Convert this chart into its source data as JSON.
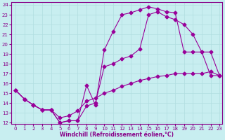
{
  "xlabel": "Windchill (Refroidissement éolien,°C)",
  "bg_color": "#c8eef0",
  "line_color": "#990099",
  "grid_color": "#b0dde0",
  "tick_color": "#880088",
  "label_color": "#880088",
  "xmin": 0,
  "xmax": 23,
  "ymin": 12,
  "ymax": 24,
  "curve1_x": [
    0,
    1,
    2,
    3,
    4,
    5,
    6,
    7,
    8,
    9,
    10,
    11,
    12,
    13,
    14,
    15,
    16,
    17,
    18,
    19,
    20,
    21,
    22,
    23
  ],
  "curve1_y": [
    15.3,
    14.4,
    13.8,
    13.3,
    13.3,
    12.0,
    12.2,
    12.2,
    15.8,
    13.8,
    19.4,
    21.3,
    23.0,
    23.2,
    23.5,
    23.8,
    23.6,
    23.3,
    23.2,
    19.2,
    19.2,
    19.2,
    19.2,
    16.8
  ],
  "curve2_x": [
    0,
    1,
    2,
    3,
    4,
    5,
    6,
    7,
    8,
    9,
    10,
    11,
    12,
    13,
    14,
    15,
    16,
    17,
    18,
    19,
    20,
    21,
    22,
    23
  ],
  "curve2_y": [
    15.3,
    14.4,
    13.8,
    13.3,
    13.3,
    12.0,
    12.2,
    12.2,
    13.7,
    14.0,
    17.7,
    18.0,
    18.5,
    18.8,
    19.5,
    23.0,
    23.3,
    22.8,
    22.5,
    22.0,
    21.0,
    19.2,
    16.8,
    16.8
  ],
  "curve3_x": [
    0,
    1,
    2,
    3,
    4,
    5,
    6,
    7,
    8,
    9,
    10,
    11,
    12,
    13,
    14,
    15,
    16,
    17,
    18,
    19,
    20,
    21,
    22,
    23
  ],
  "curve3_y": [
    15.3,
    14.4,
    13.8,
    13.3,
    13.3,
    12.5,
    12.7,
    13.2,
    14.2,
    14.5,
    15.0,
    15.3,
    15.7,
    16.0,
    16.3,
    16.5,
    16.7,
    16.8,
    17.0,
    17.0,
    17.0,
    17.0,
    17.2,
    16.8
  ]
}
